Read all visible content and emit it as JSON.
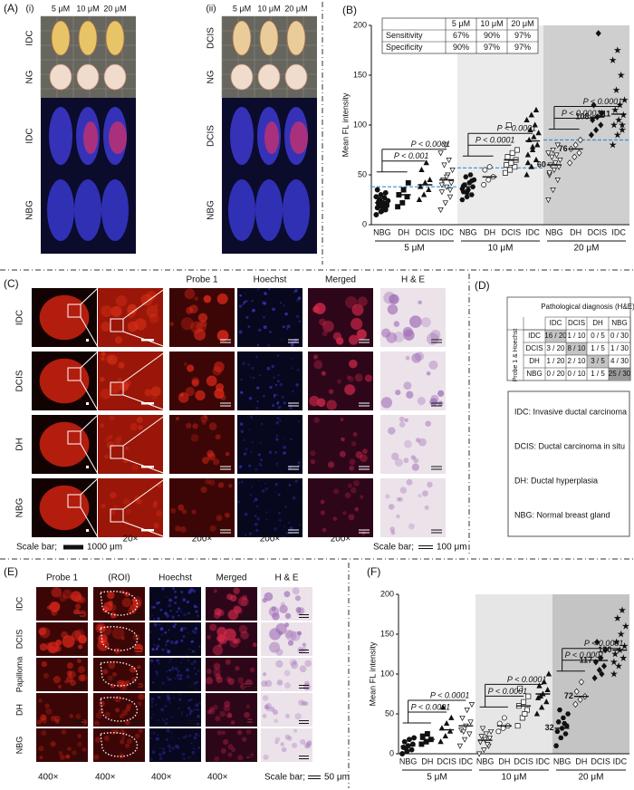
{
  "figure": {
    "panel_a": {
      "label": "(A)",
      "parts": [
        {
          "label": "(i)",
          "columns": [
            "5 μM",
            "10 μM",
            "20 μM"
          ],
          "rows": [
            "IDC",
            "NG",
            "IDC",
            "NBG"
          ]
        },
        {
          "label": "(ii)",
          "columns": [
            "5 μM",
            "10 μM",
            "20 μM"
          ],
          "rows": [
            "DCIS",
            "NG",
            "DCIS",
            "NBG"
          ]
        }
      ]
    },
    "panel_c": {
      "label": "(C)",
      "columns": [
        "Probe 1",
        "Hoechst",
        "Merged",
        "H & E"
      ],
      "rows": [
        "IDC",
        "DCIS",
        "DH",
        "NBG"
      ],
      "scale_left": {
        "prefix": "Scale bar;",
        "value": "1000 μm"
      },
      "magnifications": [
        "20×",
        "200×",
        "200×",
        "200×"
      ],
      "scale_right": {
        "prefix": "Scale bar;",
        "value": "100 μm"
      }
    },
    "panel_d": {
      "label": "(D)",
      "header": "Pathological diagnosis (H&E)",
      "row_header": "Probe 1 & Hoechst",
      "columns": [
        "IDC",
        "DCIS",
        "DH",
        "NBG"
      ],
      "rows": [
        [
          "IDC",
          "16 / 20",
          "1 / 10",
          "0 / 5",
          "0 / 30"
        ],
        [
          "DCIS",
          "3 / 20",
          "8 / 10",
          "1 / 5",
          "1 / 30"
        ],
        [
          "DH",
          "1 / 20",
          "2 / 10",
          "3 / 5",
          "4 / 30"
        ],
        [
          "NBG",
          "0 / 20",
          "0 / 10",
          "1 / 5",
          "25 / 30"
        ]
      ],
      "legend": [
        "IDC: Invasive ductal carcinoma",
        "DCIS: Ductal carcinoma in situ",
        "DH: Ductal hyperplasia",
        "NBG: Normal breast gland"
      ]
    },
    "panel_e": {
      "label": "(E)",
      "columns": [
        "Probe 1",
        "(ROI)",
        "Hoechst",
        "Merged",
        "H & E"
      ],
      "rows": [
        "IDC",
        "DCIS",
        "Papilloma",
        "DH",
        "NBG"
      ],
      "magnifications": [
        "400×",
        "400×",
        "400×",
        "400×"
      ],
      "scale": {
        "prefix": "Scale bar;",
        "value": "50 μm"
      }
    }
  },
  "chart_data": [
    {
      "type": "scatter",
      "panel": "(B)",
      "y_label": "Mean FL intensity",
      "ylim": [
        0,
        200
      ],
      "yticks": [
        0,
        50,
        100,
        150,
        200
      ],
      "threshold_color": "#3a8fd0",
      "inset_table": {
        "columns": [
          "5 μM",
          "10 μM",
          "20 μM"
        ],
        "rows": [
          {
            "name": "Sensitivity",
            "values": [
              "67%",
              "90%",
              "97%"
            ]
          },
          {
            "name": "Specificity",
            "values": [
              "90%",
              "97%",
              "97%"
            ]
          }
        ]
      },
      "blocks": [
        {
          "name": "5 μM",
          "shade": "#ffffff",
          "threshold": 38,
          "groups": [
            {
              "name": "NBG",
              "marker": "circle",
              "filled": true,
              "values": [
                10,
                13,
                15,
                17,
                18,
                20,
                21,
                22,
                24,
                25,
                27,
                28,
                30,
                32,
                35,
                14,
                19,
                23
              ],
              "mean": 22
            },
            {
              "name": "DH",
              "marker": "square",
              "filled": true,
              "values": [
                18,
                22,
                28,
                30,
                35,
                42
              ],
              "mean": 30
            },
            {
              "name": "DCIS",
              "marker": "triangle",
              "filled": true,
              "values": [
                25,
                30,
                35,
                38,
                42,
                45,
                55,
                62
              ],
              "mean": 40
            },
            {
              "name": "IDC",
              "marker": "triangle-down",
              "filled": false,
              "values": [
                15,
                22,
                28,
                33,
                38,
                42,
                45,
                50,
                55,
                60,
                65,
                72,
                80,
                35,
                40,
                48
              ],
              "mean": 45
            }
          ],
          "comparisons": [
            {
              "groups": [
                "NBG",
                "IDC"
              ],
              "label": "P < 0.0001"
            },
            {
              "groups": [
                "NBG",
                "DCIS"
              ],
              "label": "P < 0.001"
            }
          ]
        },
        {
          "name": "10 μM",
          "shade": "#ebebeb",
          "threshold": 57,
          "groups": [
            {
              "name": "NBG",
              "marker": "hexagon",
              "filled": true,
              "values": [
                25,
                28,
                30,
                33,
                35,
                38,
                40,
                42,
                45,
                48,
                50,
                36,
                32,
                44,
                39
              ],
              "mean": 38
            },
            {
              "name": "DH",
              "marker": "circle",
              "filled": false,
              "values": [
                40,
                45,
                48,
                55,
                58
              ],
              "mean": 48
            },
            {
              "name": "DCIS",
              "marker": "square",
              "filled": false,
              "values": [
                52,
                55,
                58,
                60,
                62,
                65,
                68,
                72,
                75,
                100
              ],
              "mean": 65
            },
            {
              "name": "IDC",
              "marker": "triangle",
              "filled": true,
              "values": [
                50,
                58,
                65,
                70,
                75,
                80,
                85,
                88,
                92,
                95,
                100,
                105,
                110,
                115,
                62,
                78
              ],
              "mean": 84
            }
          ],
          "comparisons": [
            {
              "groups": [
                "NBG",
                "IDC"
              ],
              "label": "P < 0.0001"
            },
            {
              "groups": [
                "NBG",
                "DCIS"
              ],
              "label": "P < 0.0001"
            }
          ]
        },
        {
          "name": "20 μM",
          "shade": "#cfcfcf",
          "threshold": 85,
          "groups": [
            {
              "name": "NBG",
              "marker": "triangle-down",
              "filled": false,
              "values": [
                25,
                35,
                45,
                50,
                55,
                58,
                60,
                62,
                65,
                68,
                70,
                72,
                75,
                80,
                52
              ],
              "mean": 60,
              "mean_label": true
            },
            {
              "name": "DH",
              "marker": "diamond",
              "filled": false,
              "values": [
                62,
                68,
                72,
                76,
                80,
                85
              ],
              "mean": 76,
              "mean_label": true
            },
            {
              "name": "DCIS",
              "marker": "diamond",
              "filled": true,
              "values": [
                90,
                95,
                100,
                105,
                108,
                112,
                120,
                192
              ],
              "mean": 108,
              "mean_label": true
            },
            {
              "name": "IDC",
              "marker": "star",
              "filled": true,
              "values": [
                80,
                90,
                95,
                100,
                105,
                110,
                115,
                120,
                125,
                135,
                150,
                165,
                175,
                100
              ],
              "mean": 111,
              "mean_label": true
            }
          ],
          "comparisons": [
            {
              "groups": [
                "NBG",
                "IDC"
              ],
              "label": "P < 0.0001"
            },
            {
              "groups": [
                "NBG",
                "DCIS"
              ],
              "label": "P < 0.0001"
            }
          ]
        }
      ]
    },
    {
      "type": "scatter",
      "panel": "(F)",
      "y_label": "Mean FL intensity",
      "ylim": [
        0,
        200
      ],
      "yticks": [
        0,
        50,
        100,
        150,
        200
      ],
      "blocks": [
        {
          "name": "5 μM",
          "shade": "#ffffff",
          "groups": [
            {
              "name": "NBG",
              "marker": "circle",
              "filled": true,
              "values": [
                0,
                3,
                5,
                8,
                10,
                12,
                15,
                18,
                20,
                7
              ],
              "mean": 10
            },
            {
              "name": "DH",
              "marker": "square",
              "filled": true,
              "values": [
                12,
                15,
                18,
                22,
                25
              ],
              "mean": 18
            },
            {
              "name": "DCIS",
              "marker": "triangle",
              "filled": true,
              "values": [
                15,
                22,
                28,
                32,
                38,
                45,
                58
              ],
              "mean": 30
            },
            {
              "name": "IDC",
              "marker": "triangle-down",
              "filled": false,
              "values": [
                10,
                18,
                25,
                30,
                35,
                40,
                45,
                55,
                62,
                28
              ],
              "mean": 35
            }
          ],
          "comparisons": [
            {
              "groups": [
                "NBG",
                "IDC"
              ],
              "label": "P < 0.0001"
            },
            {
              "groups": [
                "NBG",
                "DCIS"
              ],
              "label": "P < 0.0001"
            }
          ]
        },
        {
          "name": "10 μM",
          "shade": "#e6e6e6",
          "groups": [
            {
              "name": "NBG",
              "marker": "triangle-down",
              "filled": false,
              "values": [
                0,
                5,
                10,
                15,
                18,
                20,
                22,
                25,
                28,
                32,
                12
              ],
              "mean": 17
            },
            {
              "name": "DH",
              "marker": "circle",
              "filled": false,
              "values": [
                28,
                32,
                35,
                38,
                45
              ],
              "mean": 35
            },
            {
              "name": "DCIS",
              "marker": "square",
              "filled": false,
              "values": [
                35,
                45,
                55,
                60,
                65,
                72,
                82,
                50
              ],
              "mean": 60
            },
            {
              "name": "IDC",
              "marker": "triangle",
              "filled": true,
              "values": [
                50,
                58,
                65,
                70,
                75,
                80,
                85,
                90,
                100,
                72
              ],
              "mean": 75
            }
          ],
          "comparisons": [
            {
              "groups": [
                "NBG",
                "IDC"
              ],
              "label": "P < 0.0001"
            },
            {
              "groups": [
                "NBG",
                "DCIS"
              ],
              "label": "P < 0.0001"
            }
          ]
        },
        {
          "name": "20 μM",
          "shade": "#c4c4c4",
          "groups": [
            {
              "name": "NBG",
              "marker": "hexagon",
              "filled": true,
              "values": [
                10,
                20,
                25,
                28,
                32,
                35,
                40,
                45,
                50,
                55,
                38
              ],
              "mean": 32,
              "mean_label": true
            },
            {
              "name": "DH",
              "marker": "diamond",
              "filled": false,
              "values": [
                62,
                68,
                72,
                78,
                90
              ],
              "mean": 72,
              "mean_label": true
            },
            {
              "name": "DCIS",
              "marker": "diamond",
              "filled": true,
              "values": [
                95,
                105,
                110,
                115,
                120,
                130,
                140,
                100
              ],
              "mean": 117,
              "mean_label": true
            },
            {
              "name": "IDC",
              "marker": "star",
              "filled": true,
              "values": [
                100,
                110,
                120,
                125,
                130,
                135,
                140,
                150,
                160,
                170,
                180,
                115
              ],
              "mean": 130,
              "mean_label": true
            }
          ],
          "comparisons": [
            {
              "groups": [
                "NBG",
                "IDC"
              ],
              "label": "P < 0.0001"
            },
            {
              "groups": [
                "NBG",
                "DCIS"
              ],
              "label": "P < 0.0001"
            }
          ]
        }
      ]
    }
  ]
}
